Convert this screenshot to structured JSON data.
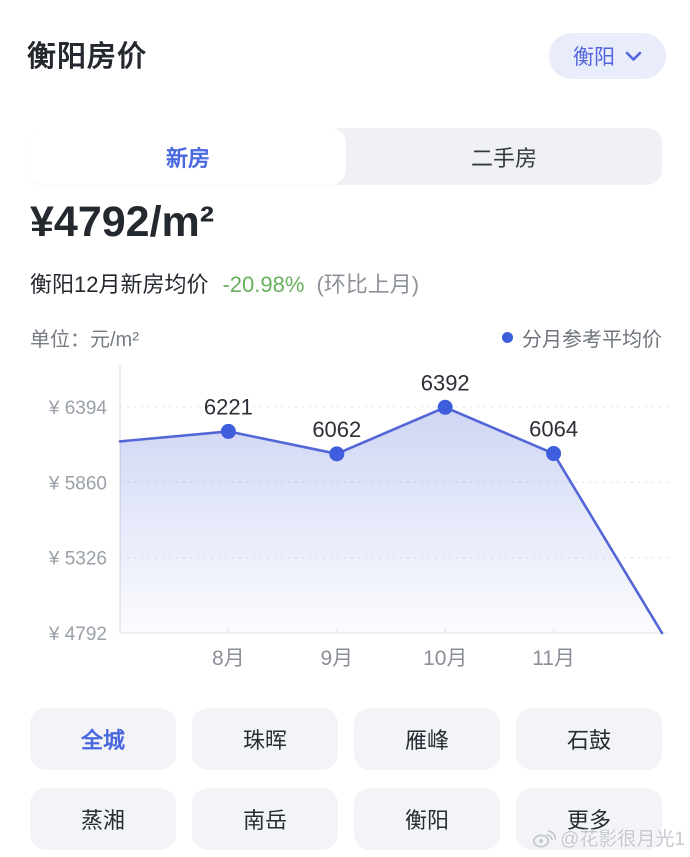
{
  "header": {
    "title": "衡阳房价",
    "city_selector": {
      "label": "衡阳"
    }
  },
  "tabs": [
    {
      "label": "新房",
      "active": true
    },
    {
      "label": "二手房",
      "active": false
    }
  ],
  "price": {
    "value": "¥4792/m²"
  },
  "summary": {
    "prefix": "衡阳12月新房均价",
    "change": "-20.98%",
    "suffix": "(环比上月)"
  },
  "chart_meta": {
    "unit_label": "单位：元/m²",
    "legend": "分月参考平均价"
  },
  "chart_data": {
    "type": "line",
    "title": "",
    "xlabel": "",
    "ylabel": "元/m²",
    "legend": "分月参考平均价",
    "grid": "dashed horizontal gridlines, left axis line, bottom baseline",
    "legend_position": "top-right",
    "ylim": [
      4792,
      6500
    ],
    "values": [
      6150,
      6221,
      6062,
      6392,
      6064,
      4792
    ],
    "value_labels": [
      "",
      "6221",
      "6062",
      "6392",
      "6064",
      ""
    ],
    "x_tick_labels": [
      "",
      "8月",
      "9月",
      "10月",
      "11月",
      ""
    ],
    "y_ticks": [
      {
        "label": "¥ 6394",
        "value": 6394
      },
      {
        "label": "¥ 5860",
        "value": 5860
      },
      {
        "label": "¥ 5326",
        "value": 5326
      },
      {
        "label": "¥ 4792",
        "value": 4792
      }
    ],
    "note": "first point (~6150) is the partially visible prior month, last point 4792 is current month at bottom-right corner"
  },
  "districts": {
    "items": [
      {
        "label": "全城",
        "active": true
      },
      {
        "label": "珠晖",
        "active": false
      },
      {
        "label": "雁峰",
        "active": false
      },
      {
        "label": "石鼓",
        "active": false
      },
      {
        "label": "蒸湘",
        "active": false
      },
      {
        "label": "南岳",
        "active": false
      },
      {
        "label": "衡阳",
        "active": false
      },
      {
        "label": "更多",
        "active": false
      }
    ]
  },
  "watermark": {
    "text": "@花影很月光1"
  },
  "colors": {
    "accent_blue": "#4a68e0",
    "pill_bg": "#e9ecfa",
    "change_green": "#67b05b",
    "line": "#5366d6",
    "dot": "#3e5ede",
    "fill_top": "rgba(104,126,220,0.32)",
    "fill_bottom": "rgba(104,126,220,0.02)",
    "grid": "#e6e8ec",
    "axis": "#e3e5ea",
    "tick_text": "#9aa0a8",
    "x_tick_text": "#8a8f98",
    "value_label_text": "#2b2f36"
  }
}
